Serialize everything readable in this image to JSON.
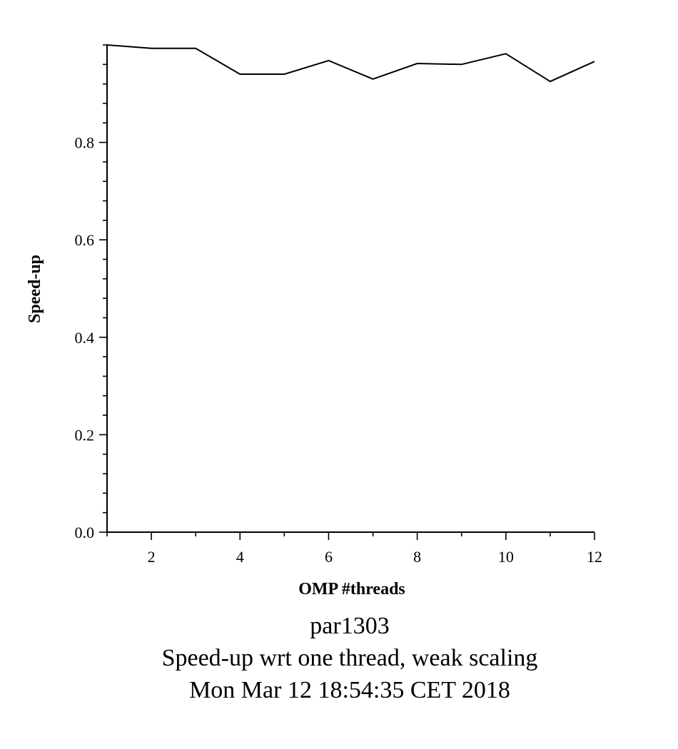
{
  "chart_data": {
    "type": "line",
    "xlabel": "OMP #threads",
    "ylabel": "Speed-up",
    "xlim": [
      1,
      12
    ],
    "ylim": [
      0,
      1
    ],
    "x_ticks": [
      2,
      4,
      6,
      8,
      10,
      12
    ],
    "y_ticks": [
      0.0,
      0.2,
      0.4,
      0.6,
      0.8
    ],
    "y_tick_labels": [
      "0.0",
      "0.2",
      "0.4",
      "0.6",
      "0.8"
    ],
    "x_minor_step": 1,
    "y_minor_step": 0.04,
    "grid": false,
    "series": [
      {
        "x": [
          1,
          2,
          3,
          4,
          5,
          6,
          7,
          8,
          9,
          10,
          11,
          12
        ],
        "values": [
          1.0,
          0.993,
          0.993,
          0.94,
          0.94,
          0.968,
          0.93,
          0.962,
          0.96,
          0.982,
          0.925,
          0.966
        ]
      }
    ]
  },
  "captions": {
    "line1": "par1303",
    "line2": "Speed-up wrt one thread, weak scaling",
    "line3": "Mon Mar 12 18:54:35 CET 2018"
  }
}
